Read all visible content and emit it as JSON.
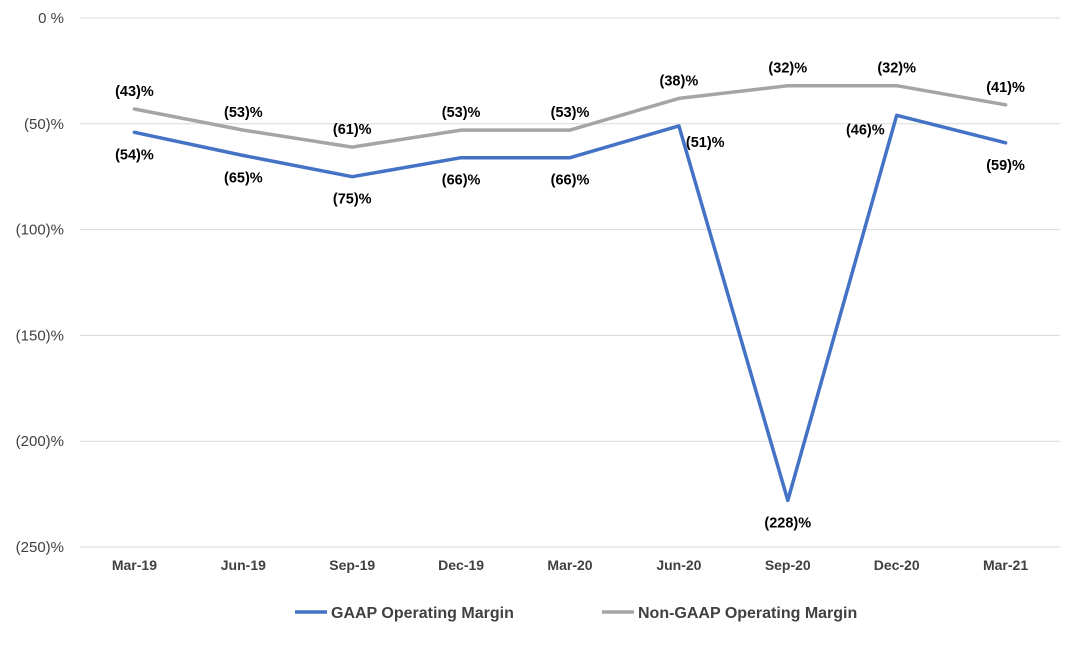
{
  "chart_data": {
    "type": "line",
    "categories": [
      "Mar-19",
      "Jun-19",
      "Sep-19",
      "Dec-19",
      "Mar-20",
      "Jun-20",
      "Sep-20",
      "Dec-20",
      "Mar-21"
    ],
    "series": [
      {
        "name": "GAAP Operating Margin",
        "color": "#4472C4",
        "values": [
          -54,
          -65,
          -75,
          -66,
          -66,
          -51,
          -228,
          -46,
          -59
        ],
        "labels": [
          "(54)%",
          "(65)%",
          "(75)%",
          "(66)%",
          "(66)%",
          "(51)%",
          "(228)%",
          "(46)%",
          "(59)%"
        ]
      },
      {
        "name": "Non-GAAP Operating Margin",
        "color": "#A5A5A5",
        "values": [
          -43,
          -53,
          -61,
          -53,
          -53,
          -38,
          -32,
          -32,
          -41
        ],
        "labels": [
          "(43)%",
          "(53)%",
          "(61)%",
          "(53)%",
          "(53)%",
          "(38)%",
          "(32)%",
          "(32)%",
          "(41)%"
        ]
      }
    ],
    "ylim": [
      -250,
      0
    ],
    "yticks": [
      0,
      -50,
      -100,
      -150,
      -200,
      -250
    ],
    "ytick_labels": [
      "0 %",
      "(50)%",
      "(100)%",
      "(150)%",
      "(200)%",
      "(250)%"
    ],
    "grid": true,
    "legend_position": "bottom",
    "gridline_color": "#D9D9D9"
  }
}
